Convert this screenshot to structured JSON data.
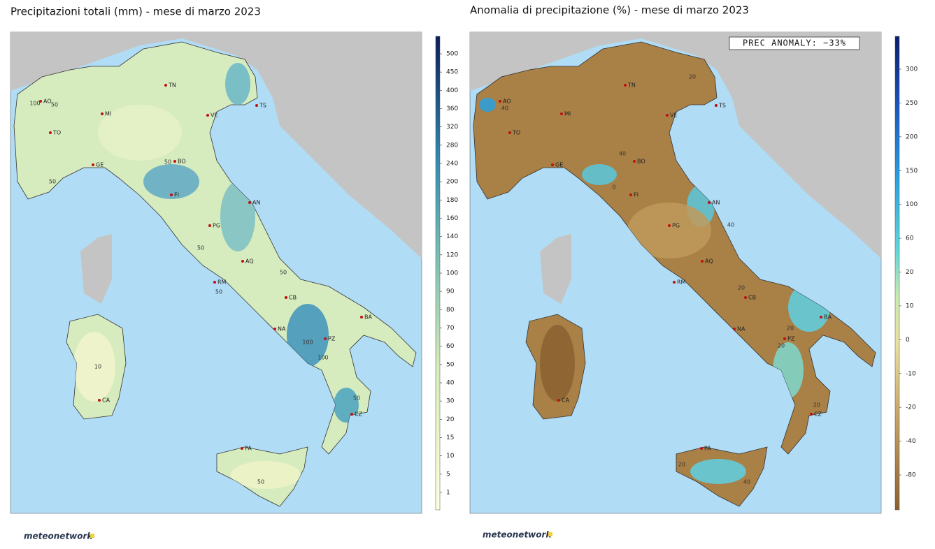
{
  "panels": [
    {
      "title": "Precipitazioni totali (mm) - mese di marzo 2023",
      "colorbar_ticks": [
        500,
        450,
        400,
        360,
        320,
        280,
        240,
        200,
        180,
        160,
        140,
        120,
        100,
        90,
        80,
        70,
        60,
        50,
        40,
        30,
        20,
        15,
        10,
        5,
        1
      ],
      "cities": [
        "AO",
        "TO",
        "MI",
        "GE",
        "TN",
        "VE",
        "TS",
        "BO",
        "FI",
        "AN",
        "PG",
        "AQ",
        "RM",
        "CB",
        "NA",
        "BA",
        "PZ",
        "CZ",
        "CA",
        "PA"
      ],
      "contour_labels": [
        "100",
        "50",
        "50",
        "50",
        "50",
        "50",
        "50",
        "100",
        "100",
        "50",
        "10",
        "50"
      ],
      "brand": "meteonetwork"
    },
    {
      "title": "Anomalia di precipitazione (%) - mese di marzo 2023",
      "annotation": "PREC ANOMALY: −33%",
      "colorbar_ticks": [
        300,
        250,
        200,
        150,
        100,
        60,
        20,
        10,
        0,
        -10,
        -20,
        -40,
        -80
      ],
      "cities": [
        "AO",
        "TO",
        "MI",
        "GE",
        "TN",
        "VE",
        "TS",
        "BO",
        "FI",
        "AN",
        "PG",
        "AQ",
        "RM",
        "CB",
        "NA",
        "BA",
        "PZ",
        "CZ",
        "CA",
        "PA"
      ],
      "contour_labels": [
        "40",
        "40",
        "0",
        "40",
        "20",
        "20",
        "20",
        "20",
        "20",
        "20",
        "40"
      ],
      "brand": "meteonetwork"
    }
  ]
}
